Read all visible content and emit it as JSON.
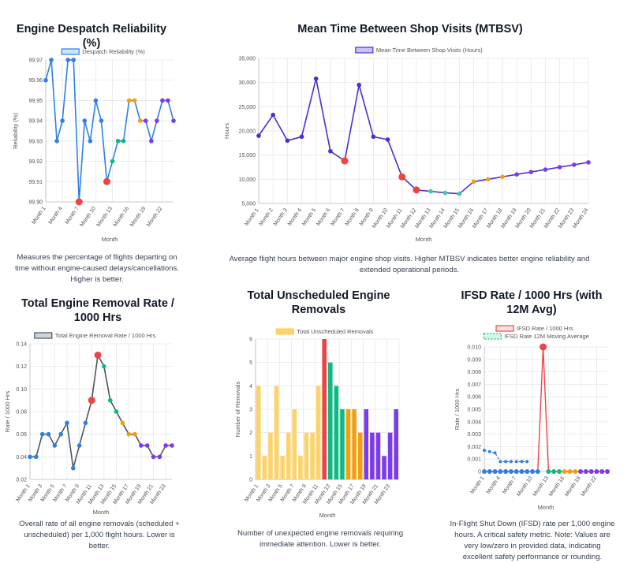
{
  "colors": {
    "blue": "#2f80e6",
    "indigo": "#4b2fd0",
    "red": "#ef4444",
    "green": "#10b981",
    "orange": "#f59e0b",
    "purple": "#7c3aed",
    "yellow": "#fcd269",
    "teal": "#4fc3a0",
    "grid": "#e5e7eb"
  },
  "charts": {
    "reliability": {
      "title": "Engine Despatch Reliability (%)",
      "description": "Measures the percentage of flights departing on time without engine-caused delays/cancellations. Higher is better.",
      "chart_data": {
        "type": "line",
        "legend": "Despatch Reliability (%)",
        "ylabel": "Reliability (%)",
        "xlabel": "Month",
        "ylim": [
          99.9,
          99.97
        ],
        "yticks": [
          "99.97",
          "99.96",
          "99.95",
          "99.94",
          "99.93",
          "99.92",
          "99.91",
          "99.90"
        ],
        "xticks": [
          "Month 1",
          "Month 4",
          "Month 7",
          "Month 10",
          "Month 13",
          "Month 16",
          "Month 19",
          "Month 22"
        ],
        "values": [
          99.96,
          99.97,
          99.93,
          99.94,
          99.97,
          99.97,
          99.9,
          99.94,
          99.93,
          99.95,
          99.94,
          99.91,
          99.92,
          99.93,
          99.93,
          99.95,
          99.95,
          99.94,
          99.94,
          99.93,
          99.94,
          99.95,
          99.95,
          99.94
        ],
        "point_colors": [
          "blue",
          "blue",
          "blue",
          "blue",
          "blue",
          "blue",
          "red",
          "blue",
          "blue",
          "blue",
          "blue",
          "red",
          "green",
          "green",
          "green",
          "orange",
          "orange",
          "orange",
          "purple",
          "purple",
          "purple",
          "purple",
          "purple",
          "purple"
        ]
      }
    },
    "mtbsv": {
      "title": "Mean Time Between Shop Visits (MTBSV)",
      "description": "Average flight hours between major engine shop visits. Higher MTBSV indicates better engine reliability and extended operational periods.",
      "chart_data": {
        "type": "line",
        "legend": "Mean Time Between Shop Visits (Hours)",
        "ylabel": "Hours",
        "xlabel": "Month",
        "ylim": [
          5000,
          35000
        ],
        "yticks": [
          "35,000",
          "30,000",
          "25,000",
          "20,000",
          "15,000",
          "10,000",
          "5,000"
        ],
        "xticks": [
          "Month 1",
          "Month 2",
          "Month 3",
          "Month 4",
          "Month 5",
          "Month 6",
          "Month 7",
          "Month 8",
          "Month 9",
          "Month 10",
          "Month 11",
          "Month 12",
          "Month 13",
          "Month 14",
          "Month 15",
          "Month 16",
          "Month 17",
          "Month 18",
          "Month 19",
          "Month 20",
          "Month 21",
          "Month 22",
          "Month 23",
          "Month 24"
        ],
        "values": [
          19000,
          23300,
          18000,
          18800,
          30800,
          15800,
          13800,
          29500,
          18800,
          18200,
          10500,
          7800,
          7500,
          7200,
          7000,
          9500,
          10000,
          10500,
          11000,
          11500,
          12000,
          12500,
          13000,
          13500
        ],
        "point_colors": [
          "indigo",
          "indigo",
          "indigo",
          "indigo",
          "indigo",
          "indigo",
          "red",
          "indigo",
          "indigo",
          "indigo",
          "red",
          "red",
          "teal",
          "teal",
          "teal",
          "orange",
          "orange",
          "orange",
          "purple",
          "purple",
          "purple",
          "purple",
          "purple",
          "purple"
        ]
      }
    },
    "removal": {
      "title": "Total Engine Removal Rate / 1000 Hrs",
      "description": "Overall rate of all engine removals (scheduled + unscheduled) per 1,000 flight hours. Lower is better.",
      "chart_data": {
        "type": "line",
        "legend": "Total Engine Removal Rate / 1000 Hrs",
        "ylabel": "Rate / 1000 Hrs",
        "xlabel": "Month",
        "ylim": [
          0.02,
          0.14
        ],
        "yticks": [
          "0.14",
          "0.12",
          "0.10",
          "0.08",
          "0.06",
          "0.04",
          "0.02"
        ],
        "xticks": [
          "Month 1",
          "Month 3",
          "Month 5",
          "Month 7",
          "Month 9",
          "Month 11",
          "Month 13",
          "Month 15",
          "Month 17",
          "Month 19",
          "Month 21",
          "Month 23"
        ],
        "values": [
          0.04,
          0.04,
          0.06,
          0.06,
          0.05,
          0.06,
          0.07,
          0.03,
          0.05,
          0.07,
          0.09,
          0.13,
          0.12,
          0.09,
          0.08,
          0.07,
          0.06,
          0.06,
          0.05,
          0.05,
          0.04,
          0.04,
          0.05,
          0.05
        ],
        "point_colors": [
          "blue",
          "blue",
          "blue",
          "blue",
          "blue",
          "blue",
          "blue",
          "blue",
          "blue",
          "blue",
          "red",
          "red",
          "green",
          "green",
          "green",
          "orange",
          "orange",
          "orange",
          "purple",
          "purple",
          "purple",
          "purple",
          "purple",
          "purple"
        ]
      }
    },
    "unscheduled": {
      "title": "Total Unscheduled Engine Removals",
      "description": "Number of unexpected engine removals requiring immediate attention. Lower is better.",
      "chart_data": {
        "type": "bar",
        "legend": "Total Unscheduled Removals",
        "ylabel": "Number of Removals",
        "xlabel": "Month",
        "ylim": [
          0,
          6
        ],
        "yticks": [
          "6",
          "5",
          "4",
          "3",
          "2",
          "1",
          "0"
        ],
        "xticks": [
          "Month 1",
          "Month 3",
          "Month 5",
          "Month 7",
          "Month 9",
          "Month 11",
          "Month 13",
          "Month 15",
          "Month 17",
          "Month 19",
          "Month 21",
          "Month 23"
        ],
        "values": [
          4,
          1,
          2,
          4,
          1,
          2,
          3,
          1,
          2,
          2,
          4,
          6,
          5,
          4,
          3,
          3,
          3,
          2,
          3,
          2,
          2,
          1,
          2,
          3
        ],
        "bar_colors": [
          "yellow",
          "yellow",
          "yellow",
          "yellow",
          "yellow",
          "yellow",
          "yellow",
          "yellow",
          "yellow",
          "yellow",
          "yellow",
          "red",
          "green",
          "green",
          "green",
          "orange",
          "orange",
          "orange",
          "purple",
          "purple",
          "purple",
          "purple",
          "purple",
          "purple"
        ]
      }
    },
    "ifsd": {
      "title": "IFSD Rate / 1000 Hrs (with 12M Avg)",
      "description": "In-Flight Shut Down (IFSD) rate per 1,000 engine hours. A critical safety metric. Note: Values are very low/zero in provided data, indicating excellent safety performance or rounding.",
      "chart_data": {
        "type": "line",
        "legend": [
          "IFSD Rate / 1000 Hrs",
          "IFSD Rate 12M Moving Average"
        ],
        "ylabel": "Rate / 1000 Hrs",
        "xlabel": "Month",
        "ylim": [
          0,
          0.01
        ],
        "yticks": [
          "0.010",
          "0.009",
          "0.008",
          "0.007",
          "0.006",
          "0.005",
          "0.004",
          "0.003",
          "0.002",
          "0.001",
          "0"
        ],
        "xticks": [
          "Month 1",
          "Month 4",
          "Month 7",
          "Month 10",
          "Month 13",
          "Month 16",
          "Month 19",
          "Month 22"
        ],
        "series": [
          {
            "name": "IFSD Rate / 1000 Hrs",
            "values": [
              0,
              0,
              0,
              0,
              0,
              0,
              0,
              0,
              0,
              0,
              0,
              0.01,
              0,
              0,
              0,
              0,
              0,
              0,
              0,
              0,
              0,
              0,
              0,
              0
            ]
          },
          {
            "name": "IFSD Rate 12M Moving Average",
            "values": [
              0.0017,
              0.0016,
              0.0015,
              0.0008,
              0.0008,
              0.0008,
              0.0008,
              0.0008,
              0.0008,
              null,
              null,
              null,
              null,
              null,
              null,
              null,
              null,
              null,
              null,
              null,
              null,
              null,
              null,
              null
            ]
          }
        ],
        "point_colors": [
          "blue",
          "blue",
          "blue",
          "blue",
          "blue",
          "blue",
          "blue",
          "blue",
          "blue",
          "blue",
          "blue",
          "red",
          "green",
          "green",
          "green",
          "orange",
          "orange",
          "orange",
          "purple",
          "purple",
          "purple",
          "purple",
          "purple",
          "purple"
        ]
      }
    }
  }
}
